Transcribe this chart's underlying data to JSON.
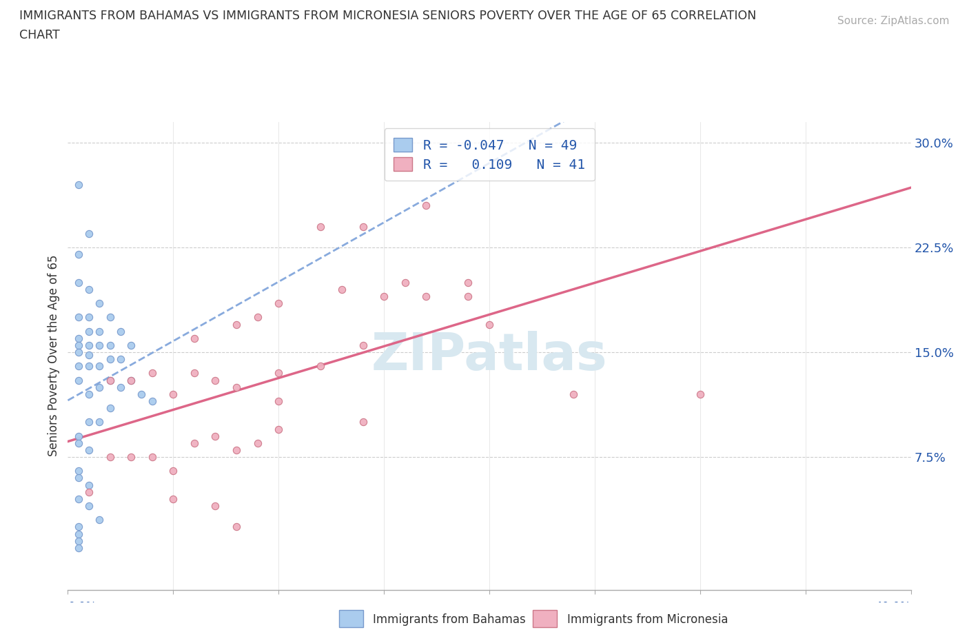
{
  "title_line1": "IMMIGRANTS FROM BAHAMAS VS IMMIGRANTS FROM MICRONESIA SENIORS POVERTY OVER THE AGE OF 65 CORRELATION",
  "title_line2": "CHART",
  "source": "Source: ZipAtlas.com",
  "ylabel": "Seniors Poverty Over the Age of 65",
  "xlim": [
    0.0,
    0.4
  ],
  "ylim": [
    -0.02,
    0.315
  ],
  "bahamas_color": "#aaccee",
  "bahamas_edge_color": "#7799cc",
  "micronesia_color": "#f0b0c0",
  "micronesia_edge_color": "#cc7788",
  "bahamas_trend_color": "#88aadd",
  "micronesia_trend_color": "#dd6688",
  "watermark_color": "#d8e8f0",
  "legend_label1": "R = -0.047   N = 49",
  "legend_label2": "R =   0.109   N = 41",
  "legend_text_color": "#2255aa",
  "ytick_color": "#2255aa",
  "xtick_color": "#2255aa",
  "bahamas_x": [
    0.005,
    0.005,
    0.005,
    0.005,
    0.005,
    0.005,
    0.005,
    0.005,
    0.005,
    0.005,
    0.01,
    0.01,
    0.01,
    0.01,
    0.01,
    0.01,
    0.01,
    0.01,
    0.01,
    0.01,
    0.015,
    0.015,
    0.015,
    0.015,
    0.015,
    0.015,
    0.02,
    0.02,
    0.02,
    0.02,
    0.02,
    0.025,
    0.025,
    0.025,
    0.03,
    0.03,
    0.035,
    0.04,
    0.005,
    0.01,
    0.005,
    0.01,
    0.015,
    0.005,
    0.005,
    0.005,
    0.005,
    0.005,
    0.005
  ],
  "bahamas_y": [
    0.27,
    0.22,
    0.2,
    0.175,
    0.16,
    0.155,
    0.15,
    0.14,
    0.13,
    0.09,
    0.235,
    0.195,
    0.175,
    0.165,
    0.155,
    0.148,
    0.14,
    0.12,
    0.1,
    0.08,
    0.185,
    0.165,
    0.155,
    0.14,
    0.125,
    0.1,
    0.175,
    0.155,
    0.145,
    0.13,
    0.11,
    0.165,
    0.145,
    0.125,
    0.155,
    0.13,
    0.12,
    0.115,
    0.06,
    0.055,
    0.045,
    0.04,
    0.03,
    0.025,
    0.02,
    0.015,
    0.01,
    0.085,
    0.065
  ],
  "micronesia_x": [
    0.01,
    0.04,
    0.05,
    0.05,
    0.06,
    0.06,
    0.07,
    0.07,
    0.08,
    0.08,
    0.08,
    0.09,
    0.09,
    0.1,
    0.1,
    0.1,
    0.12,
    0.12,
    0.13,
    0.14,
    0.14,
    0.15,
    0.16,
    0.17,
    0.17,
    0.19,
    0.19,
    0.2,
    0.24,
    0.3,
    0.02,
    0.02,
    0.03,
    0.03,
    0.04,
    0.05,
    0.06,
    0.07,
    0.08,
    0.1,
    0.14
  ],
  "micronesia_y": [
    0.05,
    0.075,
    0.065,
    0.12,
    0.085,
    0.135,
    0.09,
    0.13,
    0.08,
    0.125,
    0.17,
    0.085,
    0.175,
    0.095,
    0.135,
    0.185,
    0.14,
    0.24,
    0.195,
    0.155,
    0.24,
    0.19,
    0.2,
    0.19,
    0.255,
    0.19,
    0.2,
    0.17,
    0.12,
    0.12,
    0.13,
    0.075,
    0.13,
    0.075,
    0.135,
    0.045,
    0.16,
    0.04,
    0.025,
    0.115,
    0.1
  ]
}
